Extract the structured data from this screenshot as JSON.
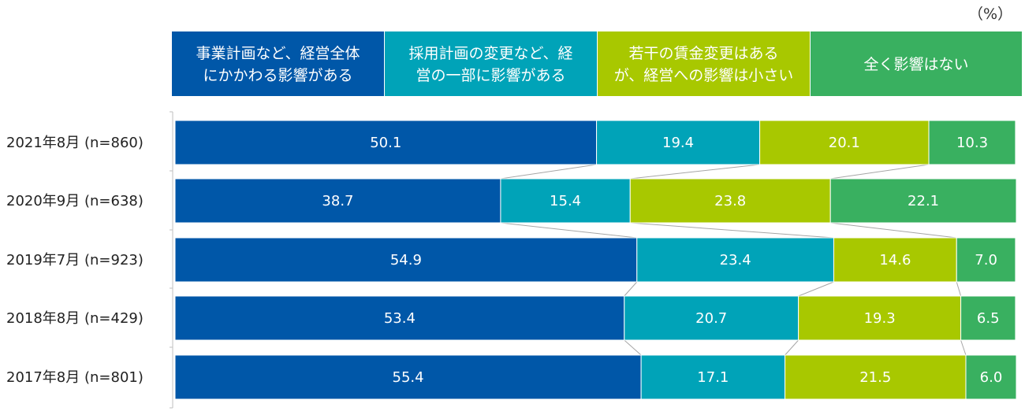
{
  "chart_data": {
    "type": "bar",
    "orientation": "horizontal",
    "stacked": true,
    "unit_label": "（%）",
    "categories": [
      "2021年8月 (n=860)",
      "2020年9月 (n=638)",
      "2019年7月 (n=923)",
      "2018年8月 (n=429)",
      "2017年8月 (n=801)"
    ],
    "series": [
      {
        "name": "事業計画など、経営全体にかかわる影響がある",
        "legend_lines": [
          "事業計画など、経営全体",
          "にかかわる影響がある"
        ],
        "color": "#0057A8",
        "values": [
          50.1,
          38.7,
          54.9,
          53.4,
          55.4
        ]
      },
      {
        "name": "採用計画の変更など、経営の一部に影響がある",
        "legend_lines": [
          "採用計画の変更など、経",
          "営の一部に影響がある"
        ],
        "color": "#00A3B8",
        "values": [
          19.4,
          15.4,
          23.4,
          20.7,
          17.1
        ]
      },
      {
        "name": "若干の賃金変更はあるが、経営への影響は小さい",
        "legend_lines": [
          "若干の賃金変更はある",
          "が、経営への影響は小さい"
        ],
        "color": "#A8C800",
        "values": [
          20.1,
          23.8,
          14.6,
          19.3,
          21.5
        ]
      },
      {
        "name": "全く影響はない",
        "legend_lines": [
          "全く影響はない"
        ],
        "color": "#39B060",
        "values": [
          10.3,
          22.1,
          7.0,
          6.5,
          6.0
        ]
      }
    ],
    "xlim": [
      0,
      100
    ],
    "legend_position": "top",
    "grid": false
  }
}
